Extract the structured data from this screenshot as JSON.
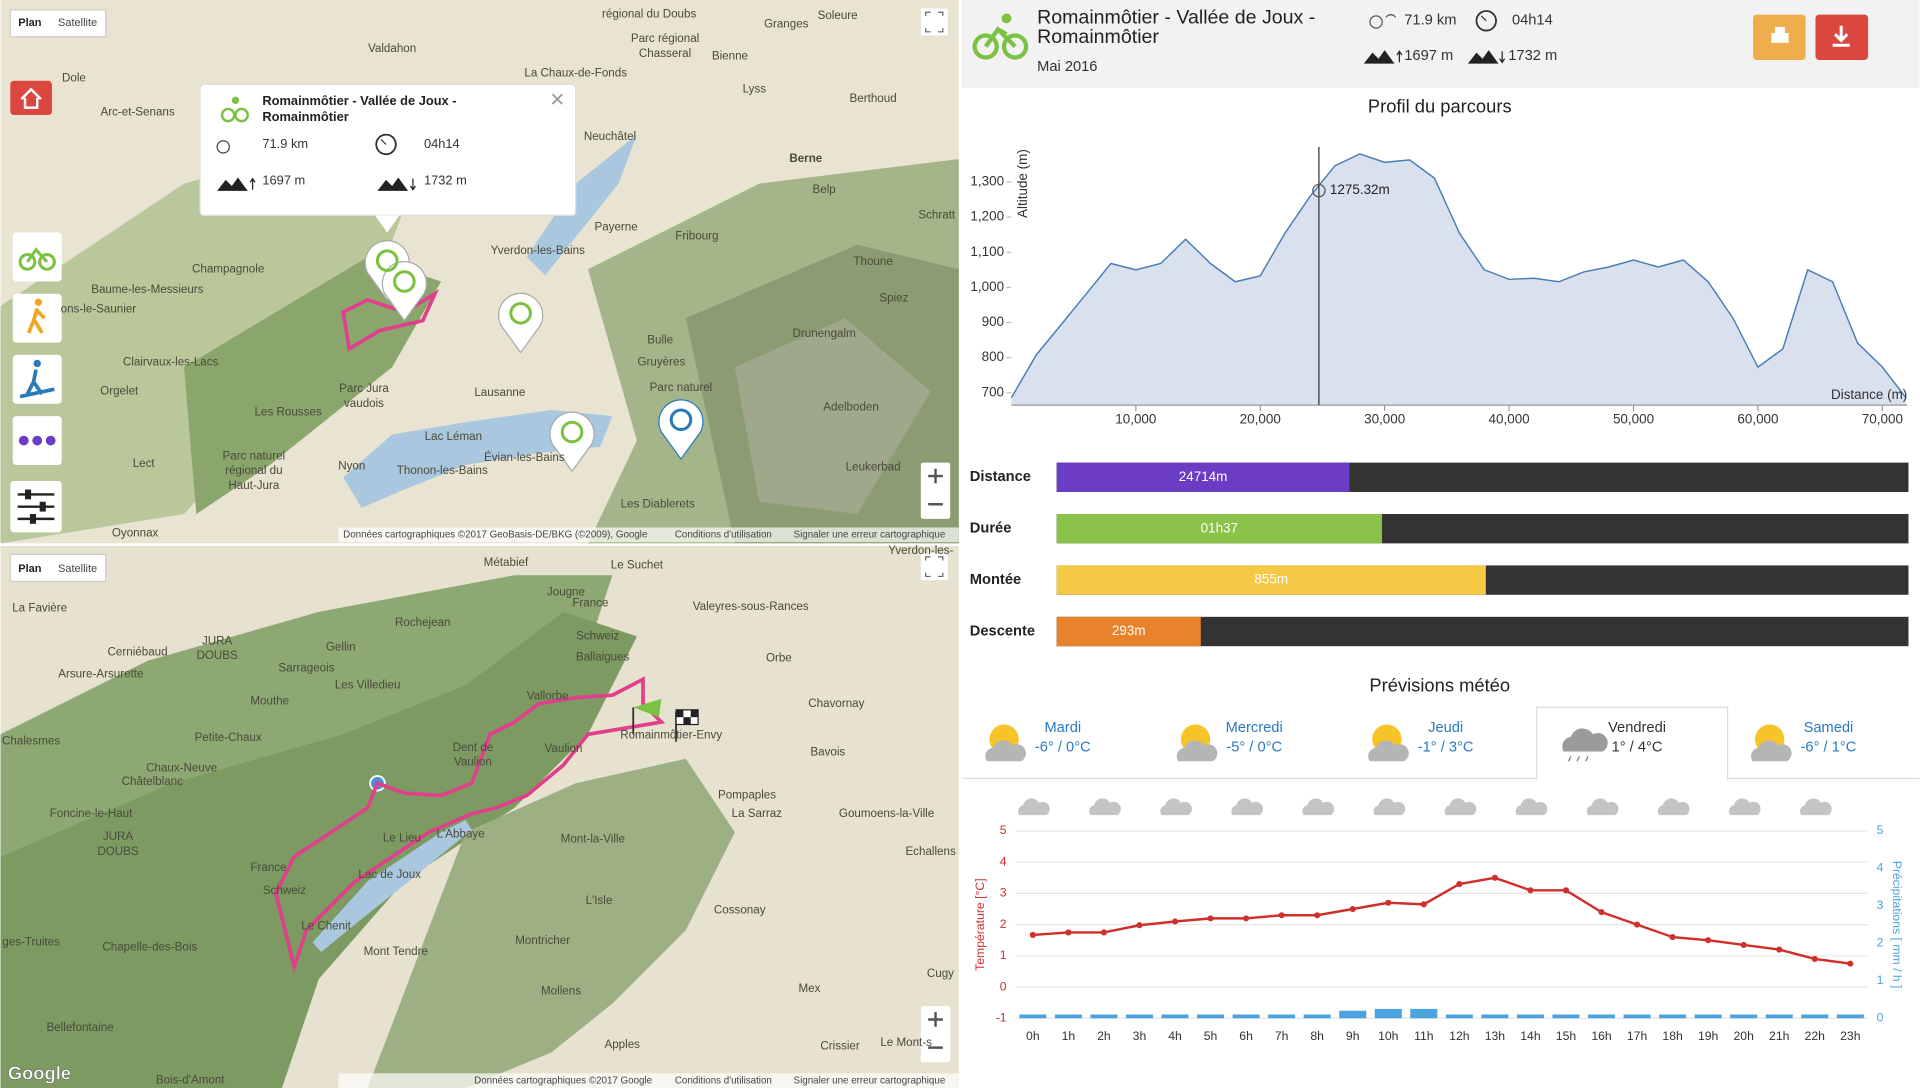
{
  "header": {
    "title_lines": [
      "Romainmôtier - Vallée de Joux -",
      "Romainmôtier"
    ],
    "date": "Mai 2016",
    "stats": [
      {
        "value": 71900,
        "label": "71.9 km"
      },
      {
        "value": 254,
        "label": "04h14"
      },
      {
        "value": 1697,
        "label": "1697 m"
      },
      {
        "value": 1732,
        "label": "1732 m"
      }
    ]
  },
  "maps": [
    {
      "buttons": [
        "Plan",
        "Satellite"
      ],
      "labels": [
        "Dole",
        "Arc-et-Senans",
        "Valdahon",
        "régional du Doubs",
        "Parc régional",
        "Chasseral",
        "Soleure",
        "Granges",
        "Bienne",
        "La Chaux-de-Fonds",
        "Lyss",
        "Berthoud",
        "Neuchâtel",
        "Berne",
        "Belp",
        "Payerne",
        "Fribourg",
        "Yverdon-les-Bains",
        "Champagnole",
        "Thoune",
        "Baume-les-Messieurs",
        "Spiez",
        "ons-le-Saunier",
        "Drunengalm",
        "Bulle",
        "Clairvaux-les-Lacs",
        "Gruyères",
        "Orgelet",
        "Parc Jura",
        "vaudois",
        "Lausanne",
        "Les Rousses",
        "Adelboden",
        "Lac Léman",
        "Lect",
        "Parc naturel",
        "régional du",
        "Haut-Jura",
        "Nyon",
        "Thonon-les-Bains",
        "Évian-les-Bains",
        "Leukerbad",
        "Les Diablerets",
        "Oyonnax",
        "Parc naturel",
        "Schratt"
      ],
      "attribution": [
        "Données cartographiques ©2017 GeoBasis-DE/BKG (©2009), Google",
        "Conditions d'utilisation",
        "Signaler une erreur cartographique"
      ]
    },
    {
      "buttons": [
        "Plan",
        "Satellite"
      ],
      "labels": [
        "Métabief",
        "Le Suchet",
        "Jougne",
        "France",
        "Rochejean",
        "La Favière",
        "Valeyres-sous-Rances",
        "Cerniébaud",
        "JURA",
        "DOUBS",
        "Gellin",
        "Schweiz",
        "Ballaigues",
        "Orbe",
        "Arsure-Arsurette",
        "Sarrageois",
        "Les Villedieu",
        "Mouthe",
        "Vallorbe",
        "Chavornay",
        "Chalesmes",
        "Petite-Chaux",
        "Romainmôtier-Envy",
        "Vaulion",
        "Dent de",
        "Vaulion",
        "Bavois",
        "Chaux-Neuve",
        "Châtelblanc",
        "Pompaples",
        "La Sarraz",
        "Goumoens-la-Ville",
        "Foncine-le-Haut",
        "Le Lieu",
        "L'Abbaye",
        "Mont-la-Ville",
        "JURA",
        "DOUBS",
        "Echallens",
        "France",
        "Schweiz",
        "Lac de Joux",
        "L'Isle",
        "Cossonay",
        "Le Chenit",
        "Mont Tendre",
        "Montricher",
        "ges-Truites",
        "Chapelle-des-Bois",
        "Mollens",
        "Cugy",
        "Mex",
        "Bellefontaine",
        "Crissier",
        "Apples",
        "Le Mont-s",
        "Bois-d'Amont",
        "Yverdon-les-"
      ],
      "attribution": [
        "Données cartographiques ©2017 Google",
        "Conditions d'utilisation",
        "Signaler une erreur cartographique"
      ],
      "logo": "Google"
    }
  ],
  "sections": {
    "profile": "Profil du parcours",
    "weather": "Prévisions météo"
  },
  "progress_bars": [
    {
      "label": "Distance",
      "value": 24714,
      "value_label": "24714m",
      "color": "#6a3dc4"
    },
    {
      "label": "Durée",
      "value": 97,
      "value_label": "01h37",
      "color": "#8bc34a"
    },
    {
      "label": "Montée",
      "value": 855,
      "value_label": "855m",
      "color": "#f5c945"
    },
    {
      "label": "Descente",
      "value": 293,
      "value_label": "293m",
      "color": "#e8832c"
    }
  ],
  "weather_days": [
    {
      "name": "Mardi",
      "temps": "-6° / 0°C"
    },
    {
      "name": "Mercredi",
      "temps": "-5° / 0°C"
    },
    {
      "name": "Jeudi",
      "temps": "-1° / 3°C"
    },
    {
      "name": "Vendredi",
      "temps": "1° / 4°C"
    },
    {
      "name": "Samedi",
      "temps": "-6° / 1°C"
    }
  ],
  "selected_day": 3,
  "chart_data": [
    {
      "type": "area",
      "ylabel": "Altitude (m)",
      "xlabel": "Distance (m)",
      "color": "#4a7fb5",
      "x": [
        0,
        2000,
        4000,
        6000,
        8000,
        10000,
        12000,
        14000,
        16000,
        18000,
        20000,
        22000,
        24000,
        26000,
        28000,
        30000,
        32000,
        34000,
        36000,
        38000,
        40000,
        42000,
        44000,
        46000,
        48000,
        50000,
        52000,
        54000,
        56000,
        58000,
        60000,
        62000,
        64000,
        66000,
        68000,
        70000,
        71900
      ],
      "values": [
        686,
        808,
        894,
        981,
        1068,
        1050,
        1068,
        1137,
        1068,
        1016,
        1033,
        1155,
        1259,
        1346,
        1380,
        1356,
        1363,
        1311,
        1155,
        1050,
        1023,
        1026,
        1016,
        1044,
        1058,
        1078,
        1058,
        1078,
        1016,
        912,
        773,
        825,
        1050,
        1016,
        842,
        773,
        686
      ],
      "xlim": [
        0,
        72000
      ],
      "ylim": [
        665,
        1400
      ],
      "xticks": [
        {
          "value": 10000,
          "label": "10,000"
        },
        {
          "value": 20000,
          "label": "20,000"
        },
        {
          "value": 30000,
          "label": "30,000"
        },
        {
          "value": 40000,
          "label": "40,000"
        },
        {
          "value": 50000,
          "label": "50,000"
        },
        {
          "value": 60000,
          "label": "60,000"
        },
        {
          "value": 70000,
          "label": "70,000"
        }
      ],
      "yticks": [
        700,
        800,
        900,
        {
          "value": 1000,
          "label": "1,000"
        },
        {
          "value": 1100,
          "label": "1,100"
        },
        {
          "value": 1200,
          "label": "1,200"
        },
        {
          "value": 1300,
          "label": "1,300"
        }
      ],
      "annotations": [
        {
          "x": 24714,
          "y": 1275.32,
          "label": "1275.32m"
        }
      ]
    },
    {
      "type": "line",
      "categories": [
        "0h",
        "1h",
        "2h",
        "3h",
        "4h",
        "5h",
        "6h",
        "7h",
        "8h",
        "9h",
        "10h",
        "11h",
        "12h",
        "13h",
        "14h",
        "15h",
        "16h",
        "17h",
        "18h",
        "19h",
        "20h",
        "21h",
        "22h",
        "23h"
      ],
      "ylabel": "Température [°C]",
      "y2label": "Précipitations [ mm / h ]",
      "series": [
        {
          "name": "Température",
          "color": "#d0302b",
          "values": [
            1.67,
            1.75,
            1.75,
            1.98,
            2.1,
            2.2,
            2.2,
            2.3,
            2.3,
            2.5,
            2.7,
            2.65,
            3.3,
            3.5,
            3.1,
            3.1,
            2.4,
            2.0,
            1.6,
            1.5,
            1.35,
            1.2,
            0.9,
            0.75
          ]
        },
        {
          "name": "Précipitations",
          "type": "bar",
          "axis": "y2",
          "color": "#4aa3df",
          "values": [
            0.1,
            0.1,
            0.1,
            0.1,
            0.1,
            0.1,
            0.1,
            0.1,
            0.1,
            0.2,
            0.25,
            0.25,
            0.1,
            0.1,
            0.1,
            0.1,
            0.1,
            0.1,
            0.1,
            0.1,
            0.1,
            0.1,
            0.1,
            0.1
          ]
        }
      ],
      "ylim": [
        -1,
        5
      ],
      "yticks": [
        -1,
        0,
        1,
        2,
        3,
        4,
        5
      ],
      "y2lim": [
        0,
        5
      ],
      "y2ticks": [
        0,
        1,
        2,
        3,
        4,
        5
      ],
      "grid": true
    }
  ]
}
